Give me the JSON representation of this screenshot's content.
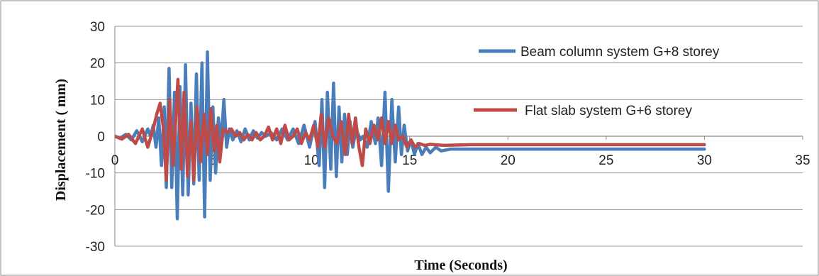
{
  "chart_data": {
    "type": "line",
    "title": "",
    "xlabel": "Time (Seconds)",
    "ylabel": "Displacement ( mm)",
    "xlim": [
      0,
      35
    ],
    "ylim": [
      -30,
      30
    ],
    "x_ticks": [
      0,
      5,
      10,
      15,
      20,
      25,
      30,
      35
    ],
    "y_ticks": [
      30,
      20,
      10,
      0,
      -10,
      -20,
      -30
    ],
    "grid": "horizontal",
    "legend_position": "top-right",
    "series": [
      {
        "name": "Beam column system G+8 storey",
        "color": "#4a7ebb",
        "points": [
          [
            0,
            0
          ],
          [
            0.4,
            -0.5
          ],
          [
            0.8,
            0.5
          ],
          [
            1.2,
            -1
          ],
          [
            1.6,
            1.5
          ],
          [
            2.0,
            -1.5
          ],
          [
            2.4,
            2
          ],
          [
            2.6,
            0
          ],
          [
            2.8,
            3
          ],
          [
            3.0,
            -3
          ],
          [
            3.2,
            5
          ],
          [
            3.4,
            -8
          ],
          [
            3.6,
            8
          ],
          [
            3.75,
            -14
          ],
          [
            3.95,
            18.5
          ],
          [
            4.15,
            -14
          ],
          [
            4.35,
            12
          ],
          [
            4.55,
            -22.5
          ],
          [
            4.75,
            13.5
          ],
          [
            4.95,
            -16
          ],
          [
            5.15,
            19.5
          ],
          [
            5.35,
            -16
          ],
          [
            5.55,
            9
          ],
          [
            5.75,
            -13
          ],
          [
            5.95,
            17
          ],
          [
            6.15,
            -12
          ],
          [
            6.35,
            20
          ],
          [
            6.55,
            -22
          ],
          [
            6.75,
            23
          ],
          [
            6.95,
            -12
          ],
          [
            7.15,
            8
          ],
          [
            7.35,
            -10
          ],
          [
            7.55,
            5
          ],
          [
            7.75,
            -2
          ],
          [
            7.95,
            10
          ],
          [
            8.15,
            -3
          ],
          [
            8.35,
            2
          ],
          [
            8.6,
            -1
          ],
          [
            8.9,
            1.5
          ],
          [
            9.2,
            -1.5
          ],
          [
            9.5,
            2
          ],
          [
            9.8,
            -1
          ],
          [
            10.1,
            1.5
          ],
          [
            10.4,
            -0.5
          ],
          [
            10.7,
            1
          ],
          [
            11.0,
            0
          ],
          [
            11.4,
            1
          ],
          [
            11.8,
            -1
          ],
          [
            12.2,
            2
          ],
          [
            12.6,
            -1
          ],
          [
            13.0,
            2
          ],
          [
            13.4,
            -2
          ],
          [
            13.8,
            3
          ],
          [
            14.2,
            -3
          ],
          [
            14.6,
            4
          ],
          [
            14.9,
            -8
          ],
          [
            15.1,
            10
          ],
          [
            15.3,
            -14
          ],
          [
            15.5,
            12
          ],
          [
            15.75,
            -9
          ],
          [
            15.95,
            14.5
          ],
          [
            16.15,
            -11
          ],
          [
            16.35,
            8
          ],
          [
            16.55,
            -7
          ],
          [
            16.75,
            6
          ],
          [
            16.95,
            -5
          ],
          [
            17.15,
            4
          ],
          [
            17.35,
            -3
          ],
          [
            17.6,
            2
          ],
          [
            17.9,
            -1
          ],
          [
            18.1,
            0
          ],
          [
            18.4,
            -3
          ],
          [
            18.7,
            4
          ],
          [
            19.0,
            -2
          ],
          [
            19.2,
            5
          ],
          [
            19.45,
            -8
          ],
          [
            19.7,
            12
          ],
          [
            19.95,
            -15
          ],
          [
            20.2,
            10
          ],
          [
            20.45,
            -7
          ],
          [
            20.7,
            8
          ],
          [
            20.9,
            -5
          ],
          [
            21.1,
            3
          ],
          [
            21.35,
            -4
          ],
          [
            21.6,
            -1
          ],
          [
            21.85,
            -5
          ],
          [
            22.1,
            -2
          ],
          [
            22.4,
            -5
          ],
          [
            22.7,
            -3
          ],
          [
            23.0,
            -4.5
          ],
          [
            23.4,
            -3
          ],
          [
            23.8,
            -4
          ],
          [
            24.5,
            -3.5
          ],
          [
            25.5,
            -3.5
          ],
          [
            27.0,
            -3.5
          ],
          [
            30.0,
            -3.5
          ],
          [
            33.0,
            -3.5
          ],
          [
            36.0,
            -3.5
          ],
          [
            43.0,
            -3.5
          ]
        ]
      },
      {
        "name": "Flat slab system G+6 storey",
        "color": "#be4b48",
        "points": [
          [
            0,
            0
          ],
          [
            0.5,
            -0.8
          ],
          [
            1.0,
            0.5
          ],
          [
            1.5,
            -2
          ],
          [
            2.0,
            2
          ],
          [
            2.4,
            -3
          ],
          [
            2.8,
            2
          ],
          [
            3.05,
            6
          ],
          [
            3.3,
            9
          ],
          [
            3.55,
            2
          ],
          [
            3.75,
            -12
          ],
          [
            4.0,
            10
          ],
          [
            4.25,
            -8
          ],
          [
            4.6,
            15.5
          ],
          [
            4.85,
            -9
          ],
          [
            5.05,
            12
          ],
          [
            5.3,
            -11
          ],
          [
            5.55,
            4
          ],
          [
            5.75,
            -12
          ],
          [
            6.0,
            8
          ],
          [
            6.25,
            -7
          ],
          [
            6.5,
            6
          ],
          [
            6.75,
            -5
          ],
          [
            7.0,
            7.5
          ],
          [
            7.25,
            -4
          ],
          [
            7.45,
            3
          ],
          [
            7.65,
            -7
          ],
          [
            7.9,
            2
          ],
          [
            8.2,
            1
          ],
          [
            8.5,
            2
          ],
          [
            8.8,
            0
          ],
          [
            9.1,
            1
          ],
          [
            9.4,
            -1
          ],
          [
            9.7,
            0.5
          ],
          [
            10.0,
            -1
          ],
          [
            10.3,
            1
          ],
          [
            10.6,
            -1
          ],
          [
            10.9,
            0
          ],
          [
            11.2,
            2.5
          ],
          [
            11.5,
            -1
          ],
          [
            11.8,
            2
          ],
          [
            12.1,
            -2
          ],
          [
            12.4,
            3
          ],
          [
            12.7,
            -1
          ],
          [
            13.0,
            0
          ],
          [
            13.3,
            2
          ],
          [
            13.6,
            -2
          ],
          [
            13.9,
            1
          ],
          [
            14.2,
            -1
          ],
          [
            14.5,
            3
          ],
          [
            14.8,
            -3
          ],
          [
            15.05,
            6
          ],
          [
            15.3,
            -3
          ],
          [
            15.6,
            5
          ],
          [
            15.9,
            0
          ],
          [
            16.2,
            -2
          ],
          [
            16.5,
            4
          ],
          [
            16.8,
            -5
          ],
          [
            17.05,
            6
          ],
          [
            17.3,
            -2
          ],
          [
            17.55,
            5
          ],
          [
            17.8,
            -3
          ],
          [
            18.05,
            -8
          ],
          [
            18.3,
            2
          ],
          [
            18.6,
            -2
          ],
          [
            18.9,
            3
          ],
          [
            19.2,
            -1
          ],
          [
            19.45,
            5
          ],
          [
            19.7,
            -2
          ],
          [
            19.95,
            4
          ],
          [
            20.2,
            -2
          ],
          [
            20.45,
            3
          ],
          [
            20.7,
            -1
          ],
          [
            21.0,
            0
          ],
          [
            21.3,
            -3
          ],
          [
            21.6,
            -1
          ],
          [
            21.9,
            -3
          ],
          [
            22.2,
            -2
          ],
          [
            22.6,
            -2.5
          ],
          [
            23.0,
            -2.2
          ],
          [
            24.0,
            -2.5
          ],
          [
            26.0,
            -2.3
          ],
          [
            30.0,
            -2.3
          ],
          [
            35.0,
            -2.3
          ],
          [
            43.0,
            -2.3
          ]
        ]
      }
    ]
  }
}
